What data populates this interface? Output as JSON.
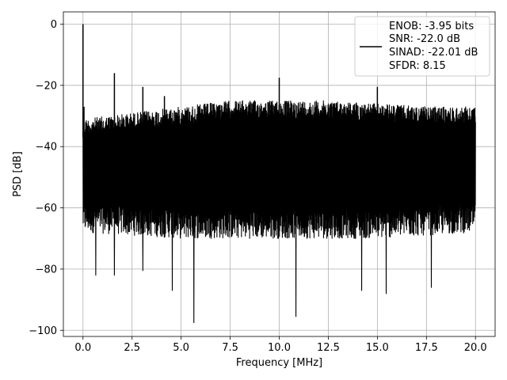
{
  "chart_data": {
    "type": "line",
    "xlabel": "Frequency [MHz]",
    "ylabel": "PSD [dB]",
    "xlim": [
      -1.0,
      21.0
    ],
    "ylim": [
      -102.0,
      4.0
    ],
    "xticks": [
      0.0,
      2.5,
      5.0,
      7.5,
      10.0,
      12.5,
      15.0,
      17.5,
      20.0
    ],
    "xtick_labels": [
      "0.0",
      "2.5",
      "5.0",
      "7.5",
      "10.0",
      "12.5",
      "15.0",
      "17.5",
      "20.0"
    ],
    "yticks": [
      0,
      -20,
      -40,
      -60,
      -80,
      -100
    ],
    "ytick_labels": [
      "0",
      "−20",
      "−40",
      "−60",
      "−80",
      "−100"
    ],
    "grid": true,
    "legend_position": "top-right",
    "legend_lines": [
      "ENOB: -3.95 bits",
      "SNR: -22.0 dB",
      "SINAD: -22.01 dB",
      "SFDR: 8.15"
    ],
    "series_color": "#000000",
    "noise_floor": {
      "x_range": [
        0.0,
        20.0
      ],
      "upper_envelope": [
        [
          0.0,
          -31
        ],
        [
          2.5,
          -29
        ],
        [
          5.0,
          -27
        ],
        [
          7.5,
          -25
        ],
        [
          10.0,
          -25
        ],
        [
          12.5,
          -25
        ],
        [
          15.0,
          -26
        ],
        [
          17.5,
          -27
        ],
        [
          20.0,
          -27
        ]
      ],
      "lower_envelope": [
        [
          0.0,
          -70
        ],
        [
          5.0,
          -72
        ],
        [
          10.0,
          -72
        ],
        [
          15.0,
          -72
        ],
        [
          20.0,
          -70
        ]
      ]
    },
    "peaks": [
      {
        "x": 0.0,
        "y": 0.0
      },
      {
        "x": 0.05,
        "y": -27.0
      },
      {
        "x": 1.6,
        "y": -16.0
      },
      {
        "x": 3.05,
        "y": -20.5
      },
      {
        "x": 4.15,
        "y": -23.5
      },
      {
        "x": 10.0,
        "y": -17.5
      },
      {
        "x": 15.0,
        "y": -20.5
      }
    ],
    "dips": [
      {
        "x": 0.65,
        "y": -82.0
      },
      {
        "x": 1.6,
        "y": -82.0
      },
      {
        "x": 3.05,
        "y": -80.5
      },
      {
        "x": 4.55,
        "y": -87.0
      },
      {
        "x": 5.65,
        "y": -97.5
      },
      {
        "x": 10.85,
        "y": -95.5
      },
      {
        "x": 14.2,
        "y": -87.0
      },
      {
        "x": 15.45,
        "y": -88.0
      },
      {
        "x": 17.75,
        "y": -86.0
      }
    ]
  }
}
